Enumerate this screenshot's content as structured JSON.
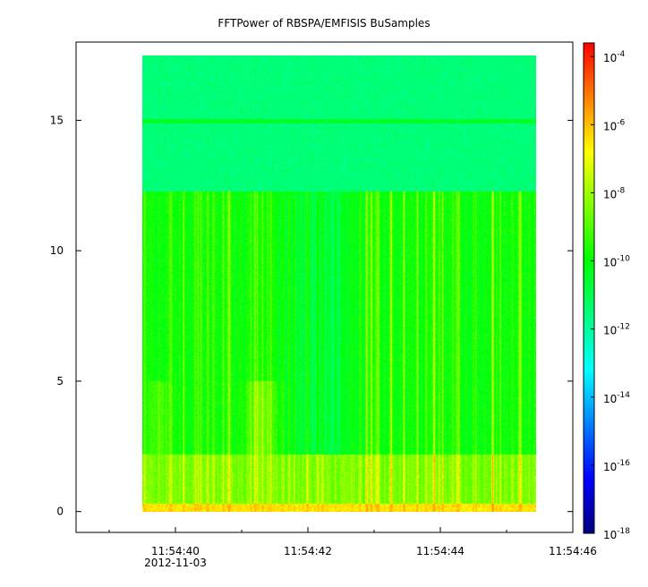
{
  "chart_data": {
    "type": "heatmap",
    "title": "FFTPower of RBSPA/EMFISIS  BuSamples",
    "xlabel": "",
    "ylabel": "",
    "x_ticks": [
      {
        "label": "11:54:40",
        "sub": "2012-11-03",
        "t": 40
      },
      {
        "label": "11:54:42",
        "sub": "",
        "t": 42
      },
      {
        "label": "11:54:44",
        "sub": "",
        "t": 44
      },
      {
        "label": "11:54:46",
        "sub": "",
        "t": 46
      }
    ],
    "x_minor_ticks": [
      39,
      41,
      43,
      45
    ],
    "xlim": [
      38.5,
      46.0
    ],
    "data_time_range": [
      39.5,
      45.45
    ],
    "y_ticks": [
      0,
      5,
      10,
      15
    ],
    "ylim": [
      -0.8,
      18.0
    ],
    "data_y_range": [
      0,
      17.5
    ],
    "colorbar": {
      "scale": "log",
      "range_exponent": [
        -18,
        -3.6
      ],
      "ticks": [
        {
          "base": "10",
          "exp": "-4",
          "e": -4
        },
        {
          "base": "10",
          "exp": "-6",
          "e": -6
        },
        {
          "base": "10",
          "exp": "-8",
          "e": -8
        },
        {
          "base": "10",
          "exp": "-10",
          "e": -10
        },
        {
          "base": "10",
          "exp": "-12",
          "e": -12
        },
        {
          "base": "10",
          "exp": "-14",
          "e": -14
        },
        {
          "base": "10",
          "exp": "-16",
          "e": -16
        },
        {
          "base": "10",
          "exp": "-18",
          "e": -18
        }
      ],
      "colors": [
        "#00007f",
        "#0000ff",
        "#007fff",
        "#00ffff",
        "#00ff7f",
        "#00ff00",
        "#7fff00",
        "#ffff00",
        "#ff7f00",
        "#ff0000"
      ]
    },
    "spectral_bands": [
      {
        "from": 0,
        "to": 0.3,
        "log_power": -6.5
      },
      {
        "from": 0.3,
        "to": 2.2,
        "log_power": -8.5
      },
      {
        "from": 2.2,
        "to": 12.3,
        "log_power": -10
      },
      {
        "from": 12.3,
        "to": 17.5,
        "log_power": -11.5
      }
    ],
    "line_feature": {
      "y": 15,
      "log_power": -10.5
    }
  }
}
